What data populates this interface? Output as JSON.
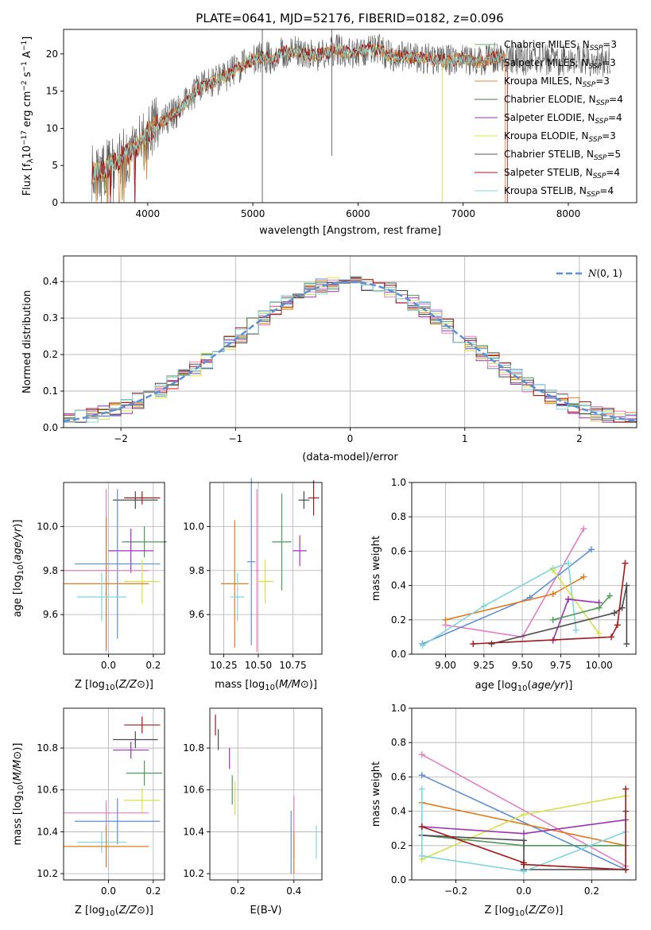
{
  "title": "PLATE=0641, MJD=52176, FIBERID=0182, z=0.096",
  "colors": {
    "chabrier_miles": "#6aa870",
    "salpeter_miles": "#a98f52",
    "kroupa_miles": "#e08a3c",
    "chabrier_elodie": "#4e7a55",
    "salpeter_elodie": "#9b32b0",
    "kroupa_elodie": "#d6e04a",
    "chabrier_stelib": "#555555",
    "salpeter_stelib": "#a31818",
    "kroupa_stelib": "#7fd6dc",
    "normal": "#5b8fd6",
    "blue": "#5b8fd6",
    "orange": "#e07a1f",
    "green": "#4e9a5a",
    "purple": "#9b32b0",
    "yellow": "#d6e04a",
    "pink": "#e47fbf",
    "cyan": "#7fd6dc",
    "darkgrey": "#4a4a4a",
    "darkred": "#a31818"
  },
  "chart_data": [
    {
      "id": "spectrum",
      "type": "line",
      "xlabel": "wavelength [Angstrom, rest frame]",
      "ylabel": "Flux [f_λ10^-17 erg cm^-2 s^-1 A^-1]",
      "xlim": [
        3200,
        8650
      ],
      "ylim": [
        0,
        23.3
      ],
      "xticks": [
        4000,
        5000,
        6000,
        7000,
        8000
      ],
      "yticks": [
        0,
        5,
        10,
        15,
        20
      ],
      "legend": [
        {
          "label": "Chabrier MILES, N",
          "sub": "SSP",
          "suffix": "=3",
          "color": "chabrier_miles"
        },
        {
          "label": "Salpeter MILES, N",
          "sub": "SSP",
          "suffix": "=3",
          "color": "salpeter_miles"
        },
        {
          "label": "Kroupa MILES, N",
          "sub": "SSP",
          "suffix": "=3",
          "color": "kroupa_miles"
        },
        {
          "label": "Chabrier ELODIE, N",
          "sub": "SSP",
          "suffix": "=4",
          "color": "chabrier_elodie"
        },
        {
          "label": "Salpeter ELODIE, N",
          "sub": "SSP",
          "suffix": "=4",
          "color": "salpeter_elodie"
        },
        {
          "label": "Kroupa ELODIE, N",
          "sub": "SSP",
          "suffix": "=3",
          "color": "kroupa_elodie"
        },
        {
          "label": "Chabrier STELIB, N",
          "sub": "SSP",
          "suffix": "=5",
          "color": "chabrier_stelib"
        },
        {
          "label": "Salpeter STELIB, N",
          "sub": "SSP",
          "suffix": "=4",
          "color": "salpeter_stelib"
        },
        {
          "label": "Kroupa STELIB, N",
          "sub": "SSP",
          "suffix": "=4",
          "color": "kroupa_stelib"
        }
      ],
      "continuum": [
        [
          3470,
          4
        ],
        [
          3600,
          4.5
        ],
        [
          3750,
          6
        ],
        [
          3900,
          7.5
        ],
        [
          4000,
          9.5
        ],
        [
          4100,
          10.5
        ],
        [
          4200,
          11.5
        ],
        [
          4300,
          12.5
        ],
        [
          4400,
          14
        ],
        [
          4500,
          15.5
        ],
        [
          4600,
          16
        ],
        [
          4700,
          16.8
        ],
        [
          4800,
          17.5
        ],
        [
          4900,
          18.5
        ],
        [
          5000,
          19.3
        ],
        [
          5100,
          19.6
        ],
        [
          5200,
          19.4
        ],
        [
          5300,
          20.3
        ],
        [
          5400,
          20.3
        ],
        [
          5500,
          20
        ],
        [
          5600,
          19.8
        ],
        [
          5700,
          20.2
        ],
        [
          5800,
          20.5
        ],
        [
          5900,
          20.2
        ],
        [
          6000,
          20.3
        ],
        [
          6100,
          20.6
        ],
        [
          6200,
          20.5
        ],
        [
          6300,
          19.8
        ],
        [
          6400,
          19.7
        ],
        [
          6500,
          19.5
        ],
        [
          6600,
          19.5
        ],
        [
          6700,
          19.2
        ],
        [
          6800,
          19
        ],
        [
          6900,
          19.2
        ],
        [
          7000,
          19.4
        ],
        [
          7100,
          19
        ],
        [
          7200,
          19
        ],
        [
          7300,
          19.6
        ],
        [
          7400,
          19.4
        ],
        [
          7500,
          19.5
        ],
        [
          7600,
          19
        ],
        [
          7700,
          19.6
        ],
        [
          7800,
          19.2
        ],
        [
          7900,
          19
        ],
        [
          8000,
          19.2
        ],
        [
          8100,
          19.3
        ],
        [
          8200,
          19
        ],
        [
          8300,
          19
        ],
        [
          8400,
          18.8
        ]
      ]
    },
    {
      "id": "residuals",
      "type": "line",
      "xlabel": "(data-model)/error",
      "ylabel": "Normed distribution",
      "xlim": [
        -2.5,
        2.5
      ],
      "ylim": [
        0,
        0.47
      ],
      "xticks": [
        -2,
        -1,
        0,
        1,
        2
      ],
      "yticks": [
        0.0,
        0.1,
        0.2,
        0.3,
        0.4
      ],
      "legend": "N(0,1)",
      "legend_loc": "upper right"
    },
    {
      "id": "z-age",
      "type": "scatter",
      "xlabel": "Z [log10(Z/Z⊙)]",
      "ylabel": "age [log10(age/yr)]",
      "xlim": [
        -0.2,
        0.25
      ],
      "ylim": [
        9.42,
        10.2
      ],
      "xticks": [
        0.0,
        0.2
      ],
      "yticks": [
        9.6,
        9.8,
        10.0
      ],
      "points": [
        {
          "x": 0.15,
          "y": 10.13,
          "xerr": 0.08,
          "yerr": 0.03,
          "color": "darkred"
        },
        {
          "x": 0.12,
          "y": 10.12,
          "xerr": 0.1,
          "yerr": 0.04,
          "color": "darkgrey"
        },
        {
          "x": 0.16,
          "y": 9.93,
          "xerr": 0.1,
          "yerr": 0.07,
          "color": "green"
        },
        {
          "x": 0.1,
          "y": 9.89,
          "xerr": 0.1,
          "yerr": 0.1,
          "color": "purple"
        },
        {
          "x": 0.04,
          "y": 9.83,
          "xerr": 0.19,
          "yerr": 0.34,
          "color": "blue"
        },
        {
          "x": -0.01,
          "y": 9.8,
          "xerr": 0.19,
          "yerr": 0.37,
          "color": "pink"
        },
        {
          "x": 0.15,
          "y": 9.75,
          "xerr": 0.08,
          "yerr": 0.1,
          "color": "yellow"
        },
        {
          "x": -0.01,
          "y": 9.74,
          "xerr": 0.19,
          "yerr": 0.3,
          "color": "orange"
        },
        {
          "x": -0.03,
          "y": 9.68,
          "xerr": 0.11,
          "yerr": 0.11,
          "color": "cyan"
        }
      ]
    },
    {
      "id": "mass-age",
      "type": "scatter",
      "xlabel": "mass [log10(M/M⊙)]",
      "ylabel": "",
      "xlim": [
        10.15,
        10.96
      ],
      "ylim": [
        9.42,
        10.2
      ],
      "xticks": [
        10.25,
        10.5,
        10.75
      ],
      "yticks": [
        9.6,
        9.8,
        10.0
      ],
      "points": [
        {
          "x": 10.9,
          "y": 10.13,
          "xerr": 0.04,
          "yerr": 0.08,
          "color": "darkred"
        },
        {
          "x": 10.83,
          "y": 10.12,
          "xerr": 0.04,
          "yerr": 0.04,
          "color": "darkgrey"
        },
        {
          "x": 10.67,
          "y": 9.93,
          "xerr": 0.07,
          "yerr": 0.22,
          "color": "green"
        },
        {
          "x": 10.8,
          "y": 9.89,
          "xerr": 0.05,
          "yerr": 0.07,
          "color": "purple"
        },
        {
          "x": 10.45,
          "y": 9.84,
          "xerr": 0.03,
          "yerr": 0.38,
          "color": "blue"
        },
        {
          "x": 10.49,
          "y": 9.8,
          "xerr": 0.01,
          "yerr": 0.37,
          "color": "pink"
        },
        {
          "x": 10.55,
          "y": 9.75,
          "xerr": 0.06,
          "yerr": 0.1,
          "color": "yellow"
        },
        {
          "x": 10.33,
          "y": 9.74,
          "xerr": 0.1,
          "yerr": 0.29,
          "color": "orange"
        },
        {
          "x": 10.35,
          "y": 9.68,
          "xerr": 0.05,
          "yerr": 0.11,
          "color": "cyan"
        }
      ]
    },
    {
      "id": "age-weight",
      "type": "line",
      "xlabel": "age [log10(age/yr)]",
      "ylabel": "mass weight",
      "xlim": [
        8.78,
        10.24
      ],
      "ylim": [
        0,
        1.0
      ],
      "xticks": [
        9.0,
        9.25,
        9.5,
        9.75,
        10.0
      ],
      "yticks": [
        0.0,
        0.2,
        0.4,
        0.6,
        0.8,
        1.0
      ],
      "series": [
        {
          "color": "pink",
          "points": [
            [
              9.0,
              0.17
            ],
            [
              9.5,
              0.1
            ],
            [
              9.9,
              0.73
            ]
          ]
        },
        {
          "color": "blue",
          "points": [
            [
              8.85,
              0.06
            ],
            [
              9.55,
              0.33
            ],
            [
              9.95,
              0.61
            ]
          ]
        },
        {
          "color": "orange",
          "points": [
            [
              9.0,
              0.2
            ],
            [
              9.7,
              0.35
            ],
            [
              9.9,
              0.45
            ]
          ]
        },
        {
          "color": "cyan",
          "points": [
            [
              8.85,
              0.05
            ],
            [
              9.25,
              0.28
            ],
            [
              9.7,
              0.5
            ],
            [
              9.8,
              0.53
            ],
            [
              9.85,
              0.14
            ]
          ]
        },
        {
          "color": "yellow",
          "points": [
            [
              9.7,
              0.49
            ],
            [
              10.0,
              0.12
            ]
          ]
        },
        {
          "color": "purple",
          "points": [
            [
              9.7,
              0.08
            ],
            [
              9.8,
              0.32
            ],
            [
              10.0,
              0.3
            ]
          ]
        },
        {
          "color": "green",
          "points": [
            [
              9.7,
              0.2
            ],
            [
              10.0,
              0.27
            ],
            [
              10.07,
              0.34
            ]
          ]
        },
        {
          "color": "darkgrey",
          "points": [
            [
              9.3,
              0.06
            ],
            [
              10.1,
              0.24
            ],
            [
              10.15,
              0.27
            ],
            [
              10.18,
              0.4
            ],
            [
              10.18,
              0.06
            ]
          ]
        },
        {
          "color": "darkred",
          "points": [
            [
              9.18,
              0.06
            ],
            [
              10.08,
              0.1
            ],
            [
              10.12,
              0.17
            ],
            [
              10.17,
              0.53
            ]
          ]
        }
      ]
    },
    {
      "id": "z-mass",
      "type": "scatter",
      "xlabel": "Z [log10(Z/Z⊙)]",
      "ylabel": "mass [log10(M/M⊙)]",
      "xlim": [
        -0.2,
        0.25
      ],
      "ylim": [
        10.17,
        10.99
      ],
      "xticks": [
        0.0,
        0.2
      ],
      "yticks": [
        10.2,
        10.4,
        10.6,
        10.8
      ],
      "points": [
        {
          "x": 0.15,
          "y": 10.91,
          "xerr": 0.08,
          "yerr": 0.04,
          "color": "darkred"
        },
        {
          "x": 0.12,
          "y": 10.84,
          "xerr": 0.1,
          "yerr": 0.04,
          "color": "darkgrey"
        },
        {
          "x": 0.1,
          "y": 10.79,
          "xerr": 0.08,
          "yerr": 0.04,
          "color": "purple"
        },
        {
          "x": 0.16,
          "y": 10.68,
          "xerr": 0.08,
          "yerr": 0.06,
          "color": "green"
        },
        {
          "x": 0.15,
          "y": 10.55,
          "xerr": 0.08,
          "yerr": 0.06,
          "color": "yellow"
        },
        {
          "x": -0.01,
          "y": 10.49,
          "xerr": 0.19,
          "yerr": 0.06,
          "color": "pink"
        },
        {
          "x": 0.04,
          "y": 10.45,
          "xerr": 0.19,
          "yerr": 0.11,
          "color": "blue"
        },
        {
          "x": -0.03,
          "y": 10.35,
          "xerr": 0.11,
          "yerr": 0.05,
          "color": "cyan"
        },
        {
          "x": -0.01,
          "y": 10.33,
          "xerr": 0.19,
          "yerr": 0.1,
          "color": "orange"
        }
      ]
    },
    {
      "id": "ebv-mass",
      "type": "scatter",
      "xlabel": "E(B-V)",
      "ylabel": "",
      "xlim": [
        0.1,
        0.5
      ],
      "ylim": [
        10.17,
        10.99
      ],
      "xticks": [
        0.2,
        0.4
      ],
      "yticks": [
        10.2,
        10.4,
        10.6,
        10.8
      ],
      "points": [
        {
          "x": 0.12,
          "y": 10.91,
          "xerr": 0,
          "yerr": 0.05,
          "color": "darkred"
        },
        {
          "x": 0.13,
          "y": 10.84,
          "xerr": 0,
          "yerr": 0.05,
          "color": "darkgrey"
        },
        {
          "x": 0.17,
          "y": 10.75,
          "xerr": 0,
          "yerr": 0.05,
          "color": "purple"
        },
        {
          "x": 0.18,
          "y": 10.6,
          "xerr": 0,
          "yerr": 0.07,
          "color": "green"
        },
        {
          "x": 0.19,
          "y": 10.56,
          "xerr": 0,
          "yerr": 0.08,
          "color": "yellow"
        },
        {
          "x": 0.4,
          "y": 10.42,
          "xerr": 0,
          "yerr": 0.15,
          "color": "pink"
        },
        {
          "x": 0.39,
          "y": 10.35,
          "xerr": 0,
          "yerr": 0.15,
          "color": "blue"
        },
        {
          "x": 0.4,
          "y": 10.3,
          "xerr": 0,
          "yerr": 0.1,
          "color": "orange"
        },
        {
          "x": 0.48,
          "y": 10.35,
          "xerr": 0,
          "yerr": 0.08,
          "color": "cyan"
        }
      ]
    },
    {
      "id": "z-weight",
      "type": "line",
      "xlabel": "Z [log10(Z/Z⊙)]",
      "ylabel": "mass weight",
      "xlim": [
        -0.33,
        0.33
      ],
      "ylim": [
        0,
        1.0
      ],
      "xticks": [
        -0.2,
        0.0,
        0.2
      ],
      "yticks": [
        0.0,
        0.2,
        0.4,
        0.6,
        0.8,
        1.0
      ],
      "series": [
        {
          "color": "pink",
          "points": [
            [
              -0.3,
              0.73
            ],
            [
              0.3,
              0.08
            ]
          ]
        },
        {
          "color": "blue",
          "points": [
            [
              -0.3,
              0.61
            ],
            [
              0.3,
              0.06
            ]
          ]
        },
        {
          "color": "orange",
          "points": [
            [
              -0.3,
              0.45
            ],
            [
              0.3,
              0.2
            ]
          ]
        },
        {
          "color": "yellow",
          "points": [
            [
              -0.3,
              0.12
            ],
            [
              0.0,
              0.38
            ],
            [
              0.3,
              0.49
            ]
          ]
        },
        {
          "color": "purple",
          "points": [
            [
              -0.3,
              0.31
            ],
            [
              0.0,
              0.27
            ],
            [
              0.3,
              0.35
            ]
          ]
        },
        {
          "color": "green",
          "points": [
            [
              -0.3,
              0.26
            ],
            [
              0.0,
              0.2
            ],
            [
              0.3,
              0.2
            ]
          ]
        },
        {
          "color": "darkgrey",
          "points": [
            [
              -0.3,
              0.26
            ],
            [
              0.0,
              0.23
            ],
            [
              0.0,
              0.06
            ],
            [
              0.3,
              0.06
            ],
            [
              0.3,
              0.4
            ]
          ]
        },
        {
          "color": "cyan",
          "points": [
            [
              -0.3,
              0.53
            ],
            [
              -0.3,
              0.14
            ],
            [
              0.0,
              0.05
            ],
            [
              0.3,
              0.28
            ]
          ]
        },
        {
          "color": "darkred",
          "points": [
            [
              -0.3,
              0.31
            ],
            [
              0.0,
              0.1
            ],
            [
              0.0,
              0.09
            ],
            [
              0.3,
              0.06
            ],
            [
              0.3,
              0.53
            ]
          ]
        }
      ]
    }
  ]
}
